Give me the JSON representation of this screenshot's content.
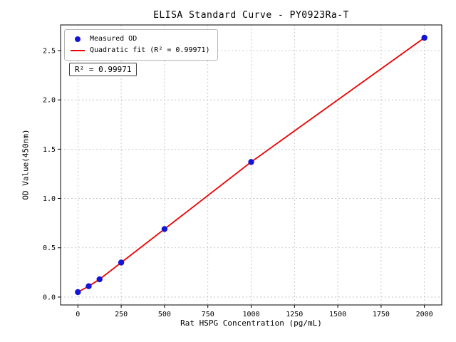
{
  "chart_data": {
    "type": "scatter",
    "title": "ELISA Standard Curve - PY0923Ra-T",
    "xlabel": "Rat HSPG Concentration (pg/mL)",
    "ylabel": "OD Value(450nm)",
    "x": [
      0,
      62.5,
      125,
      250,
      500,
      1000,
      2000
    ],
    "y": [
      0.05,
      0.11,
      0.18,
      0.35,
      0.69,
      1.37,
      2.63
    ],
    "xlim": [
      -100,
      2100
    ],
    "ylim": [
      -0.08,
      2.76
    ],
    "x_ticks": [
      0,
      250,
      500,
      750,
      1000,
      1250,
      1500,
      1750,
      2000
    ],
    "y_ticks": [
      0.0,
      0.5,
      1.0,
      1.5,
      2.0,
      2.5
    ],
    "y_tick_labels": [
      "0.0",
      "0.5",
      "1.0",
      "1.5",
      "2.0",
      "2.5"
    ],
    "grid": true,
    "legend_position": "upper-left",
    "legend": [
      "Measured OD",
      "Quadratic fit (R² = 0.99971)"
    ],
    "annotation": "R² = 0.99971",
    "point_color": "#1414d8",
    "line_color": "#ee0000"
  }
}
